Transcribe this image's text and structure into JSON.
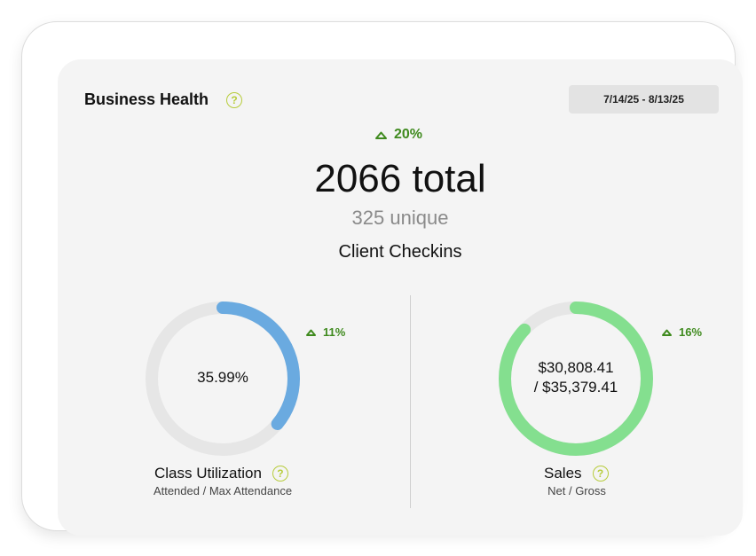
{
  "header": {
    "title": "Business Health",
    "help_icon": "help-circle-icon",
    "date_range": "7/14/25 - 8/13/25"
  },
  "checkins": {
    "change": "20%",
    "change_direction": "up",
    "total": "2066 total",
    "unique": "325 unique",
    "label": "Client Checkins"
  },
  "class_utilization": {
    "value_text": "35.99%",
    "progress": 0.3599,
    "change": "11%",
    "change_direction": "up",
    "label": "Class Utilization",
    "sublabel": "Attended / Max Attendance",
    "ring_color": "#6aaae0"
  },
  "sales": {
    "net": "$30,808.41",
    "gross": "/ $35,379.41",
    "progress": 0.8708,
    "change": "16%",
    "change_direction": "up",
    "label": "Sales",
    "sublabel": "Net / Gross",
    "ring_color": "#84df8f"
  },
  "colors": {
    "card_background": "#f4f4f4",
    "positive_change": "#3f8a1e",
    "help_icon": "#b7cc3b",
    "ring_track": "#e6e6e6"
  }
}
